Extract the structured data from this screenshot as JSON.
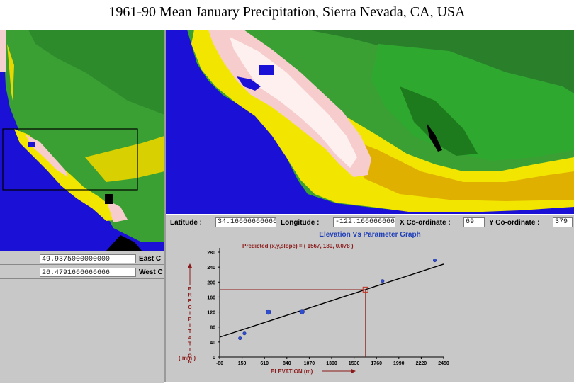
{
  "title": "1961-90 Mean January Precipitation, Sierra Nevada, CA, USA",
  "left_panel": {
    "field1_value": "49.9375000000000",
    "field1_label": "East C",
    "field2_value": "26.4791666666666",
    "field2_label": "West C"
  },
  "coord_bar": {
    "latitude_label": "Latitude :",
    "latitude_value": "34.1666666666665",
    "longitude_label": "Longitude :",
    "longitude_value": "-122.1666666666667",
    "xcoord_label": "X Co-ordinate :",
    "xcoord_value": "69",
    "ycoord_label": "Y Co-ordinate :",
    "ycoord_value": "379"
  },
  "graph_header": "Elevation Vs Parameter Graph",
  "colors": {
    "water": "#1a10d6",
    "lowland": "#f5c8c8",
    "foothills": "#f2e600",
    "mountains": "#2fa830",
    "header_text": "#1f3fb8",
    "predicted_text": "#8b1a1a"
  },
  "chart_data": {
    "type": "scatter",
    "title": "",
    "annotation": "Predicted (x,y,slope) = ( 1567, 180, 0.078 )",
    "xlabel": "ELEVATION (m)",
    "ylabel": "PRECIPITATION",
    "yunit": "( mm )",
    "xlim": [
      -80,
      2450
    ],
    "ylim": [
      0,
      280
    ],
    "xticks": [
      -80,
      150,
      610,
      840,
      1070,
      1300,
      1530,
      1760,
      1990,
      2220,
      2450
    ],
    "xtick_labels": [
      "-80",
      "150",
      "610",
      "840",
      "1070",
      "1300",
      "1530",
      "1760",
      "1990",
      "2220",
      "2450"
    ],
    "yticks": [
      0,
      40,
      80,
      120,
      160,
      200,
      240,
      280
    ],
    "ytick_labels": [
      "0",
      "40",
      "80",
      "120",
      "160",
      "200",
      "240",
      "280"
    ],
    "points": [
      {
        "x": 150,
        "y": 50
      },
      {
        "x": 200,
        "y": 63
      },
      {
        "x": 470,
        "y": 120
      },
      {
        "x": 850,
        "y": 121
      },
      {
        "x": 1760,
        "y": 203
      },
      {
        "x": 2350,
        "y": 258
      }
    ],
    "fit_line": {
      "x": [
        -80,
        2450
      ],
      "y": [
        53,
        248
      ]
    },
    "predicted": {
      "x": 1567,
      "y": 180,
      "slope": 0.078
    }
  }
}
